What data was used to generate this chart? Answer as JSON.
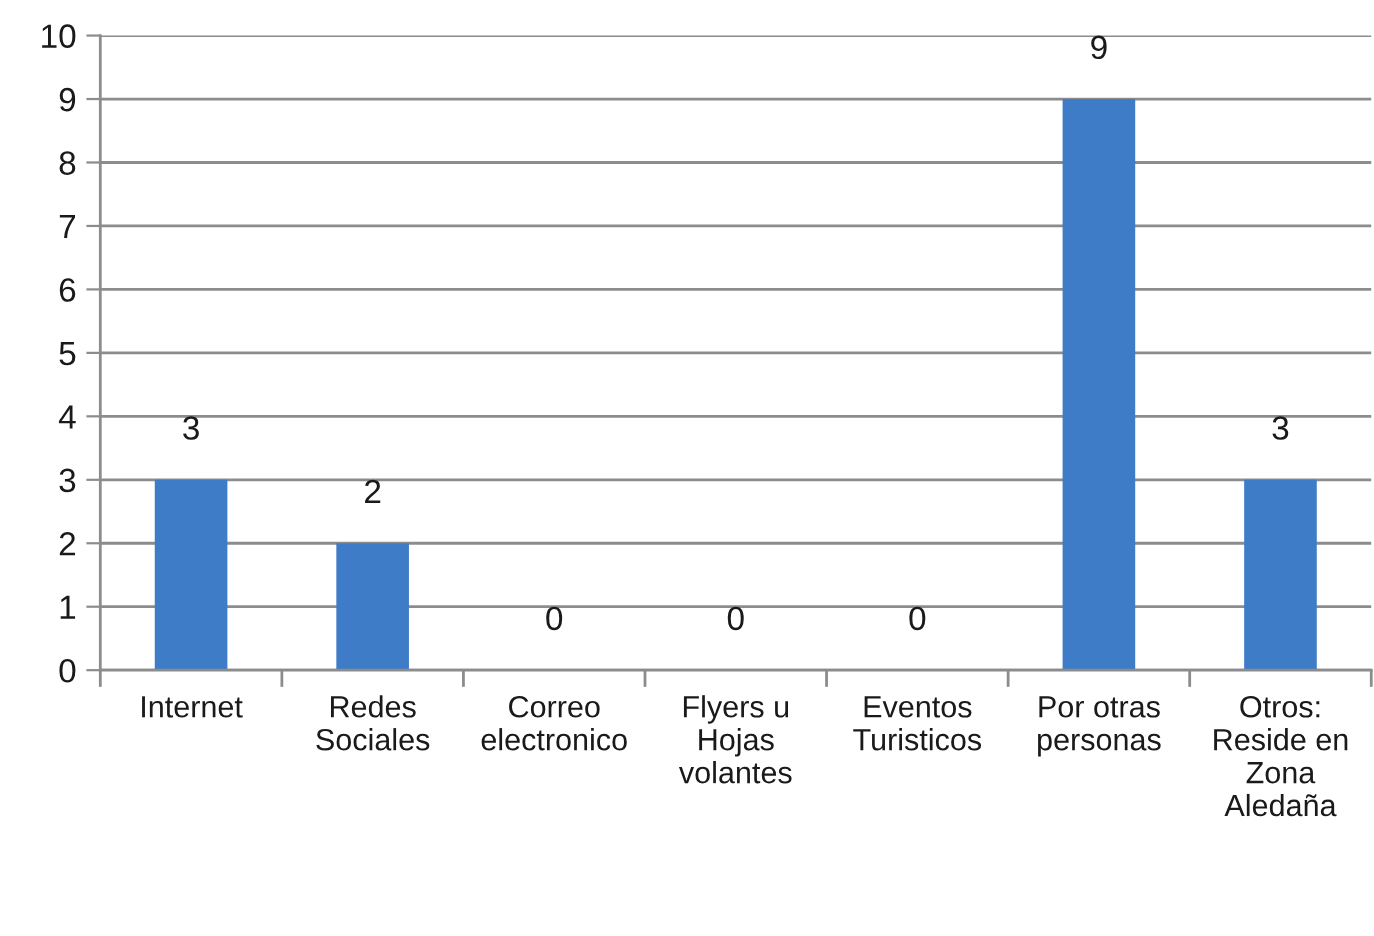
{
  "chart_data": {
    "type": "bar",
    "categories": [
      "Internet",
      "Redes\nSociales",
      "Correo\nelectronico",
      "Flyers u\nHojas\nvolantes",
      "Eventos\nTuristicos",
      "Por otras\npersonas",
      "Otros:\nReside en\nZona\nAledaña"
    ],
    "values": [
      3,
      2,
      0,
      0,
      0,
      9,
      3
    ],
    "color": "#3f7cc8",
    "ylim": [
      0,
      10
    ],
    "yticks": [
      0,
      1,
      2,
      3,
      4,
      5,
      6,
      7,
      8,
      9,
      10
    ],
    "grid": "y",
    "data_labels": true
  }
}
